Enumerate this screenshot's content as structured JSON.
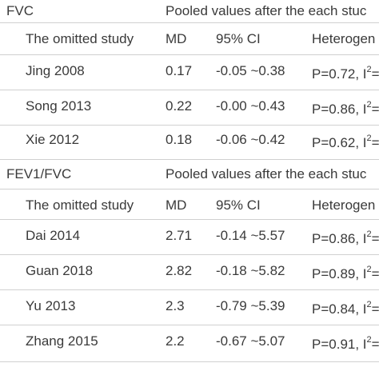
{
  "sections": [
    {
      "group_label": "FVC",
      "pooled_header": "Pooled values after the each stuc",
      "columns": {
        "study": "The omitted study",
        "md": "MD",
        "ci": "95% CI",
        "het": "Heterogen"
      },
      "rows": [
        {
          "study": "Jing 2008",
          "md": "0.17",
          "ci": "-0.05 ~0.38",
          "het_p": "P=0.72, I",
          "het_sup": "2",
          "het_tail": "="
        },
        {
          "study": "Song 2013",
          "md": "0.22",
          "ci": "-0.00 ~0.43",
          "het_p": "P=0.86, I",
          "het_sup": "2",
          "het_tail": "="
        },
        {
          "study": "Xie 2012",
          "md": "0.18",
          "ci": "-0.06 ~0.42",
          "het_p": "P=0.62, I",
          "het_sup": "2",
          "het_tail": "="
        }
      ]
    },
    {
      "group_label": "FEV1/FVC",
      "pooled_header": "Pooled values after the each stuc",
      "columns": {
        "study": "The omitted study",
        "md": "MD",
        "ci": "95% CI",
        "het": "Heterogen"
      },
      "rows": [
        {
          "study": "Dai 2014",
          "md": "2.71",
          "ci": "-0.14 ~5.57",
          "het_p": "P=0.86, I",
          "het_sup": "2",
          "het_tail": "="
        },
        {
          "study": "Guan 2018",
          "md": "2.82",
          "ci": "-0.18 ~5.82",
          "het_p": "P=0.89, I",
          "het_sup": "2",
          "het_tail": "="
        },
        {
          "study": "Yu 2013",
          "md": "2.3",
          "ci": "-0.79 ~5.39",
          "het_p": "P=0.84, I",
          "het_sup": "2",
          "het_tail": "="
        },
        {
          "study": "Zhang 2015",
          "md": "2.2",
          "ci": "-0.67 ~5.07",
          "het_p": "P=0.91, I",
          "het_sup": "2",
          "het_tail": "="
        }
      ]
    }
  ]
}
